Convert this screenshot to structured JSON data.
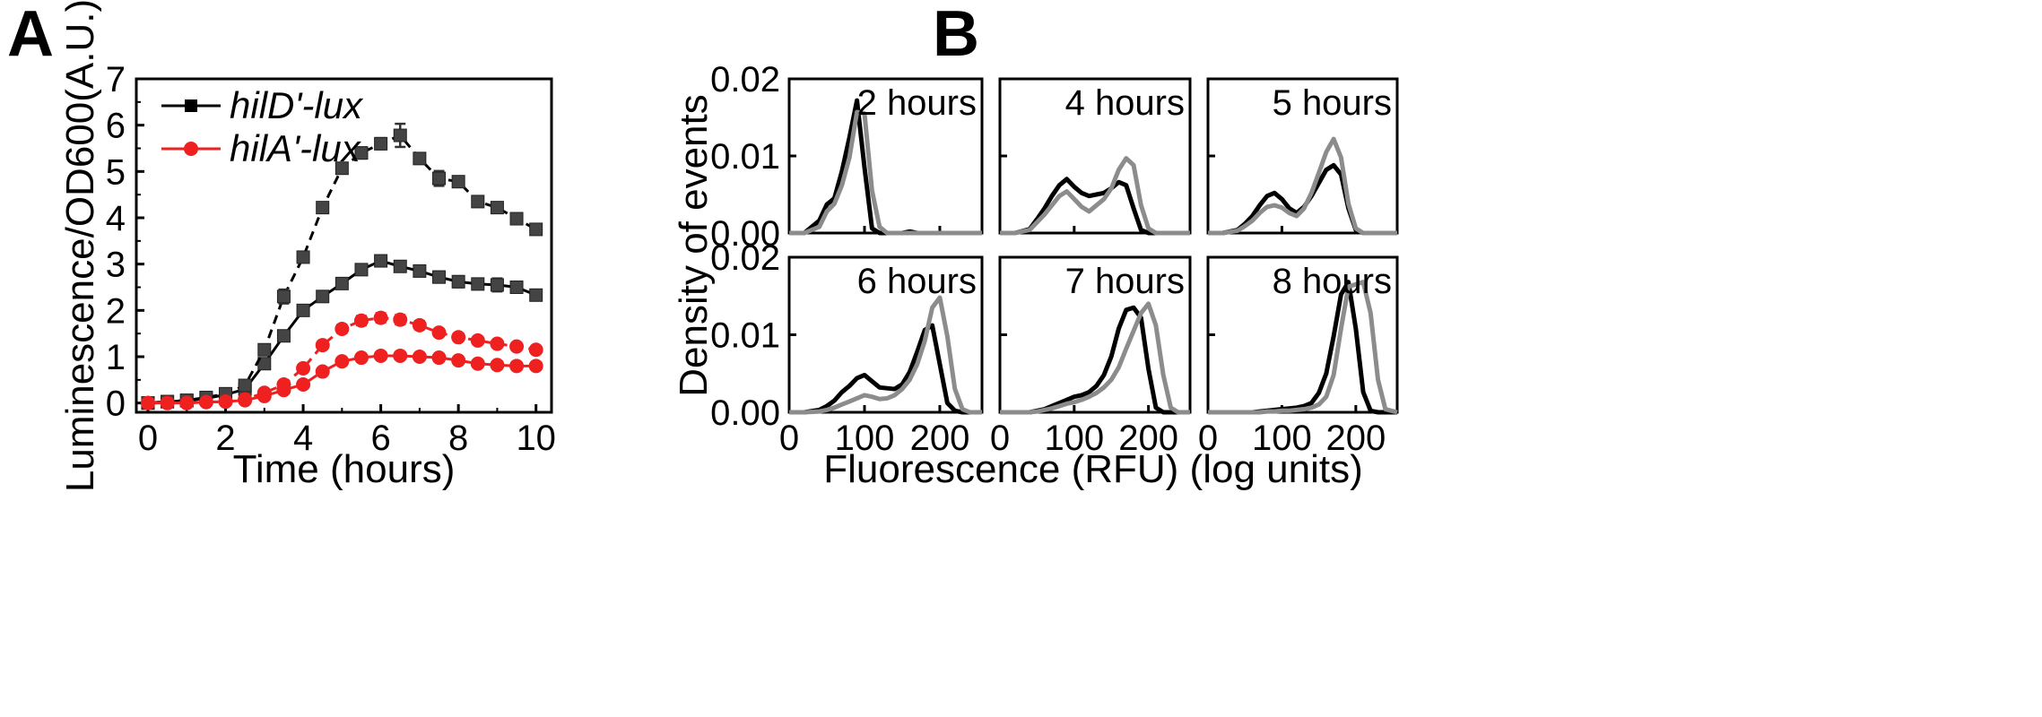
{
  "panels": {
    "a": {
      "letter": "A"
    },
    "b": {
      "letter": "B"
    }
  },
  "chart_data": [
    {
      "type": "line",
      "panel": "A",
      "title": "",
      "xlabel": "Time (hours)",
      "ylabel": "Luminescence/OD600(A.U.)",
      "xlim": [
        -0.3,
        10.4
      ],
      "ylim": [
        -0.2,
        7
      ],
      "xticks": [
        "0",
        "2",
        "4",
        "6",
        "8",
        "10"
      ],
      "yticks": [
        "0",
        "1",
        "2",
        "3",
        "4",
        "5",
        "6",
        "7"
      ],
      "legend_position": "top-left",
      "x": [
        0,
        0.5,
        1,
        1.5,
        2,
        2.5,
        3,
        3.5,
        4,
        4.5,
        5,
        5.5,
        6,
        6.5,
        7,
        7.5,
        8,
        8.5,
        9,
        9.5,
        10
      ],
      "series": [
        {
          "name": "hilD'-lux",
          "legend": true,
          "color": "#000000",
          "marker": "square",
          "dash": "solid",
          "values": [
            0,
            0.03,
            0.05,
            0.1,
            0.18,
            0.3,
            0.85,
            1.45,
            2.0,
            2.3,
            2.58,
            2.88,
            3.07,
            2.95,
            2.85,
            2.72,
            2.62,
            2.57,
            2.55,
            2.5,
            2.33
          ],
          "errors": [
            0.03,
            0.03,
            0.03,
            0.03,
            0.03,
            0.04,
            0.06,
            0.06,
            0.07,
            0.08,
            0.07,
            0.08,
            0.09,
            0.08,
            0.1,
            0.12,
            0.12,
            0.1,
            0.14,
            0.1,
            0.09
          ]
        },
        {
          "name": "hilD'-lux (dashed)",
          "legend": false,
          "color": "#000000",
          "marker": "square",
          "dash": "dashed",
          "values": [
            0,
            0.03,
            0.06,
            0.12,
            0.2,
            0.38,
            1.15,
            2.3,
            3.15,
            4.22,
            5.07,
            5.4,
            5.6,
            5.78,
            5.28,
            4.85,
            4.78,
            4.35,
            4.22,
            3.98,
            3.75
          ],
          "errors": [
            0.03,
            0.03,
            0.03,
            0.03,
            0.03,
            0.05,
            0.1,
            0.15,
            0.1,
            0.08,
            0.08,
            0.12,
            0.12,
            0.25,
            0.1,
            0.16,
            0.1,
            0.08,
            0.07,
            0.08,
            0.08
          ]
        },
        {
          "name": "hilA'-lux",
          "legend": true,
          "color": "#ee2020",
          "marker": "circle",
          "dash": "solid",
          "values": [
            0,
            0,
            0,
            0.02,
            0.03,
            0.06,
            0.15,
            0.28,
            0.4,
            0.68,
            0.9,
            0.98,
            1.02,
            1.02,
            1.0,
            0.98,
            0.92,
            0.85,
            0.82,
            0.8,
            0.8
          ],
          "errors": [
            0.02,
            0.02,
            0.02,
            0.02,
            0.02,
            0.03,
            0.03,
            0.04,
            0.05,
            0.05,
            0.05,
            0.06,
            0.06,
            0.06,
            0.06,
            0.05,
            0.05,
            0.05,
            0.05,
            0.05,
            0.05
          ]
        },
        {
          "name": "hilA'-lux (dashed)",
          "legend": false,
          "color": "#ee2020",
          "marker": "circle",
          "dash": "dashed",
          "values": [
            0,
            0,
            0,
            0.02,
            0.03,
            0.08,
            0.22,
            0.4,
            0.75,
            1.25,
            1.6,
            1.78,
            1.84,
            1.8,
            1.68,
            1.52,
            1.42,
            1.35,
            1.28,
            1.22,
            1.15
          ],
          "errors": [
            0.02,
            0.02,
            0.02,
            0.02,
            0.02,
            0.04,
            0.05,
            0.06,
            0.07,
            0.08,
            0.09,
            0.1,
            0.1,
            0.1,
            0.09,
            0.08,
            0.08,
            0.07,
            0.07,
            0.07,
            0.06
          ]
        }
      ]
    },
    {
      "type": "line",
      "panel": "B",
      "title": "",
      "xlabel": "Fluorescence (RFU) (log units)",
      "ylabel": "Density of events",
      "xlim": [
        0,
        256
      ],
      "ylim": [
        0,
        0.02
      ],
      "xticks": [
        "0",
        "100",
        "200"
      ],
      "yticks": [
        "0.00",
        "0.01",
        "0.02"
      ],
      "grid": false,
      "x": [
        0,
        20,
        40,
        50,
        60,
        70,
        80,
        90,
        100,
        110,
        120,
        130,
        140,
        150,
        160,
        170,
        180,
        190,
        200,
        210,
        220,
        230,
        240,
        256
      ],
      "subplots": [
        {
          "label": "2 hours",
          "series": [
            {
              "color": "#000000",
              "values": [
                0,
                0,
                0.0016,
                0.0037,
                0.0045,
                0.008,
                0.0124,
                0.0172,
                0.0085,
                0.0006,
                0,
                0,
                0,
                0,
                0.0002,
                0,
                0,
                0,
                0,
                0,
                0,
                0,
                0,
                0
              ]
            },
            {
              "color": "#8c8c8c",
              "values": [
                0,
                0,
                0.0008,
                0.0028,
                0.0038,
                0.0062,
                0.0098,
                0.0157,
                0.0155,
                0.0055,
                0.0008,
                0,
                0,
                0,
                0,
                0,
                0,
                0,
                0,
                0,
                0,
                0,
                0,
                0
              ]
            }
          ]
        },
        {
          "label": "4 hours",
          "series": [
            {
              "color": "#000000",
              "values": [
                0,
                0,
                0.0005,
                0.0018,
                0.0032,
                0.0048,
                0.0062,
                0.007,
                0.006,
                0.0052,
                0.0048,
                0.005,
                0.0052,
                0.0058,
                0.0066,
                0.0062,
                0.0032,
                0.0004,
                0,
                0,
                0,
                0,
                0,
                0
              ]
            },
            {
              "color": "#8c8c8c",
              "values": [
                0,
                0,
                0.0004,
                0.0014,
                0.0024,
                0.0036,
                0.0048,
                0.0054,
                0.0044,
                0.0034,
                0.0028,
                0.0036,
                0.0044,
                0.0058,
                0.0082,
                0.0097,
                0.0088,
                0.0036,
                0.0006,
                0,
                0,
                0,
                0,
                0
              ]
            }
          ]
        },
        {
          "label": "5 hours",
          "series": [
            {
              "color": "#000000",
              "values": [
                0,
                0,
                0.0004,
                0.0012,
                0.0022,
                0.0036,
                0.0048,
                0.0052,
                0.0044,
                0.0032,
                0.0026,
                0.0034,
                0.0048,
                0.0065,
                0.0082,
                0.0088,
                0.0076,
                0.0032,
                0.0004,
                0,
                0,
                0,
                0,
                0
              ]
            },
            {
              "color": "#8c8c8c",
              "values": [
                0,
                0,
                0.0003,
                0.0009,
                0.0016,
                0.0026,
                0.0034,
                0.0036,
                0.0033,
                0.0026,
                0.0022,
                0.0032,
                0.0052,
                0.0078,
                0.0105,
                0.0122,
                0.0098,
                0.0038,
                0.0006,
                0,
                0,
                0,
                0,
                0
              ]
            }
          ]
        },
        {
          "label": "6 hours",
          "series": [
            {
              "color": "#000000",
              "values": [
                0,
                0,
                0.0003,
                0.0008,
                0.0015,
                0.0026,
                0.0034,
                0.0044,
                0.0048,
                0.004,
                0.0032,
                0.0031,
                0.003,
                0.0036,
                0.0052,
                0.0078,
                0.0106,
                0.0112,
                0.0062,
                0.0012,
                0.0002,
                0,
                0,
                0
              ]
            },
            {
              "color": "#8c8c8c",
              "values": [
                0,
                0,
                0.0001,
                0.0003,
                0.0006,
                0.001,
                0.0014,
                0.0018,
                0.0022,
                0.002,
                0.0017,
                0.0018,
                0.0022,
                0.003,
                0.0042,
                0.0062,
                0.0092,
                0.0135,
                0.0148,
                0.0098,
                0.003,
                0.0004,
                0,
                0
              ]
            }
          ]
        },
        {
          "label": "7 hours",
          "series": [
            {
              "color": "#000000",
              "values": [
                0,
                0,
                0,
                0.0002,
                0.0004,
                0.0008,
                0.0012,
                0.0016,
                0.002,
                0.0022,
                0.0026,
                0.0034,
                0.0048,
                0.0072,
                0.0108,
                0.0132,
                0.0135,
                0.0122,
                0.0056,
                0.0006,
                0,
                0,
                0,
                0
              ]
            },
            {
              "color": "#8c8c8c",
              "values": [
                0,
                0,
                0,
                0.0001,
                0.0003,
                0.0005,
                0.0008,
                0.0011,
                0.0013,
                0.0016,
                0.002,
                0.0025,
                0.0032,
                0.0042,
                0.0058,
                0.0082,
                0.0105,
                0.0128,
                0.014,
                0.0112,
                0.0048,
                0.0006,
                0,
                0
              ]
            }
          ]
        },
        {
          "label": "8 hours",
          "series": [
            {
              "color": "#000000",
              "values": [
                0,
                0,
                0,
                0,
                0,
                0.0001,
                0.0002,
                0.0003,
                0.0004,
                0.0005,
                0.0006,
                0.0008,
                0.0012,
                0.0025,
                0.005,
                0.0098,
                0.0152,
                0.0168,
                0.0108,
                0.0026,
                0.0002,
                0,
                0,
                0
              ]
            },
            {
              "color": "#8c8c8c",
              "values": [
                0,
                0,
                0,
                0,
                0,
                0,
                0.0001,
                0.0001,
                0.0002,
                0.0002,
                0.0003,
                0.0004,
                0.0006,
                0.001,
                0.002,
                0.0048,
                0.0108,
                0.0162,
                0.0165,
                0.0168,
                0.0128,
                0.0042,
                0.0004,
                0
              ]
            }
          ]
        }
      ]
    }
  ]
}
